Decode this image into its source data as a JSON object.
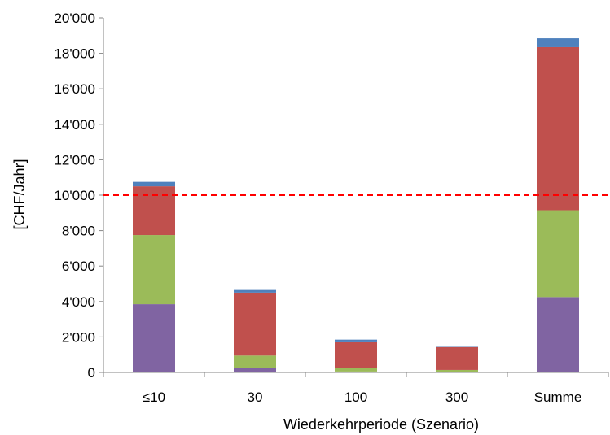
{
  "chart_data": {
    "type": "bar",
    "stacked": true,
    "categories": [
      "≤10",
      "30",
      "100",
      "300",
      "Summe"
    ],
    "series": [
      {
        "values": [
          3850,
          250,
          50,
          20,
          4250
        ],
        "color": "#8064A2"
      },
      {
        "values": [
          3900,
          700,
          200,
          120,
          4900
        ],
        "color": "#9BBB59"
      },
      {
        "values": [
          2750,
          3550,
          1450,
          1290,
          9200
        ],
        "color": "#C0504D"
      },
      {
        "values": [
          250,
          150,
          150,
          20,
          500
        ],
        "color": "#4F81BD"
      }
    ],
    "xlabel": "Wiederkehrperiode (Szenario)",
    "ylabel": "[CHF/Jahr]",
    "ylim": [
      0,
      20000
    ],
    "yticks": [
      0,
      2000,
      4000,
      6000,
      8000,
      10000,
      12000,
      14000,
      16000,
      18000,
      20000
    ],
    "ytick_labels": [
      "0",
      "2'000",
      "4'000",
      "6'000",
      "8'000",
      "10'000",
      "12'000",
      "14'000",
      "16'000",
      "18'000",
      "20'000"
    ],
    "reference_line": {
      "value": 10000,
      "color": "#FF0000",
      "style": "dashed"
    },
    "grid": false,
    "legend": "none"
  }
}
